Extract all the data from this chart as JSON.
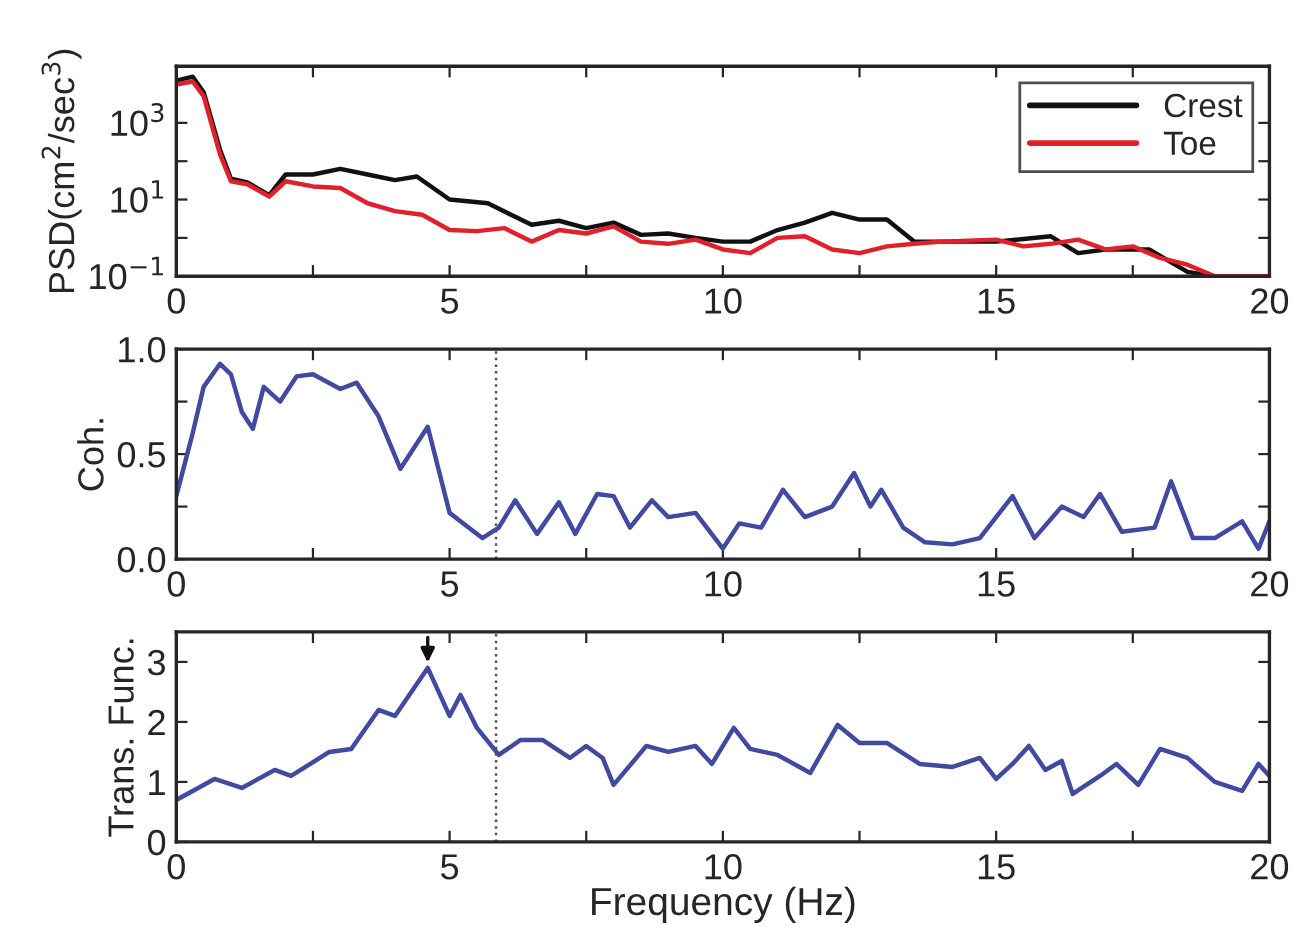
{
  "chart_data": [
    {
      "type": "line",
      "ylabel": "PSD(cm$^{2}$/sec$^{3}$)",
      "log": "y",
      "legend": "top right",
      "grid": false,
      "xlim": [
        0,
        20
      ],
      "ylim": [
        0.1,
        30000
      ],
      "xticks": [
        0,
        {
          "value": 2.5,
          "label": null
        },
        5,
        {
          "value": 7.5,
          "label": null
        },
        10,
        {
          "value": 12.5,
          "label": null
        },
        15,
        {
          "value": 17.5,
          "label": null
        },
        20
      ],
      "yticks": [
        {
          "value": 0.1,
          "label": "10$^{−1}$"
        },
        {
          "value": 1,
          "label": null
        },
        {
          "value": 10,
          "label": "10$^{1}$"
        },
        {
          "value": 100,
          "label": null
        },
        {
          "value": 1000,
          "label": "10$^{3}$"
        }
      ],
      "series": [
        {
          "name": "Crest",
          "color": "#111111",
          "x": [
            0,
            0.3,
            0.5,
            0.8,
            1.0,
            1.3,
            1.7,
            2.0,
            2.5,
            3.0,
            3.5,
            4.0,
            4.4,
            5.0,
            5.7,
            6.5,
            7.0,
            7.5,
            8.0,
            8.5,
            9,
            9.5,
            10,
            10.5,
            11,
            11.5,
            12,
            12.5,
            13,
            13.5,
            14,
            15,
            16,
            16.5,
            17,
            17.8,
            18.5,
            19,
            20
          ],
          "values": [
            12600,
            16000,
            6300,
            200,
            35,
            28,
            13,
            45,
            45,
            63,
            45,
            32,
            40,
            10,
            8,
            2.2,
            2.8,
            1.8,
            2.5,
            1.2,
            1.3,
            1.0,
            0.8,
            0.8,
            1.6,
            2.5,
            4.5,
            3,
            3,
            0.8,
            0.8,
            0.8,
            1.1,
            0.4,
            0.5,
            0.5,
            0.13,
            0.1,
            0.1
          ]
        },
        {
          "name": "Toe",
          "color": "#e0202a",
          "x": [
            0,
            0.3,
            0.5,
            0.8,
            1.0,
            1.3,
            1.7,
            2.0,
            2.5,
            3.0,
            3.5,
            4,
            4.5,
            5,
            5.5,
            6,
            6.5,
            7,
            7.5,
            8,
            8.5,
            9,
            9.5,
            10,
            10.5,
            11,
            11.5,
            12,
            12.5,
            13,
            13.5,
            14,
            15,
            15.5,
            16,
            16.5,
            17,
            17.5,
            18,
            18.5,
            19,
            20
          ],
          "values": [
            10000,
            12000,
            5000,
            150,
            30,
            25,
            12,
            30,
            22,
            20,
            8,
            5,
            4,
            1.6,
            1.5,
            1.8,
            0.8,
            1.6,
            1.3,
            2,
            0.8,
            0.7,
            0.9,
            0.5,
            0.4,
            1.0,
            1.1,
            0.5,
            0.4,
            0.6,
            0.7,
            0.8,
            0.9,
            0.6,
            0.7,
            0.9,
            0.5,
            0.6,
            0.3,
            0.2,
            0.1,
            0.1
          ]
        }
      ]
    },
    {
      "type": "line",
      "ylabel": "Coh.",
      "grid": false,
      "xlim": [
        0,
        20
      ],
      "ylim": [
        0,
        1
      ],
      "xticks": [
        0,
        {
          "value": 2.5,
          "label": null
        },
        5,
        {
          "value": 7.5,
          "label": null
        },
        10,
        {
          "value": 12.5,
          "label": null
        },
        15,
        {
          "value": 17.5,
          "label": null
        },
        20
      ],
      "yticks": [
        {
          "value": 0,
          "label": "0.0"
        },
        {
          "value": 0.25,
          "label": null
        },
        {
          "value": 0.5,
          "label": "0.5"
        },
        {
          "value": 0.75,
          "label": null
        },
        {
          "value": 1,
          "label": "1.0"
        }
      ],
      "ref_lines": [
        {
          "axis": "x",
          "value": 5.85,
          "color": "#555555",
          "line_style": "dotted"
        }
      ],
      "series": [
        {
          "color": "#3f4aa0",
          "x": [
            0,
            0.3,
            0.5,
            0.8,
            1.0,
            1.2,
            1.4,
            1.6,
            1.9,
            2.2,
            2.5,
            3.0,
            3.3,
            3.7,
            4.1,
            4.4,
            4.6,
            5.0,
            5.4,
            5.6,
            5.9,
            6.2,
            6.6,
            7.0,
            7.3,
            7.7,
            8.0,
            8.3,
            8.7,
            9.0,
            9.5,
            10.0,
            10.3,
            10.7,
            11.1,
            11.5,
            12.0,
            12.4,
            12.7,
            12.9,
            13.3,
            13.7,
            14.2,
            14.7,
            15.3,
            15.7,
            16.2,
            16.6,
            16.9,
            17.3,
            17.9,
            18.2,
            18.6,
            19.0,
            19.5,
            19.8,
            20
          ],
          "values": [
            0.3,
            0.6,
            0.82,
            0.93,
            0.88,
            0.7,
            0.62,
            0.82,
            0.75,
            0.87,
            0.88,
            0.81,
            0.84,
            0.68,
            0.43,
            0.55,
            0.63,
            0.22,
            0.14,
            0.1,
            0.15,
            0.28,
            0.12,
            0.27,
            0.12,
            0.31,
            0.3,
            0.15,
            0.28,
            0.2,
            0.22,
            0.05,
            0.17,
            0.15,
            0.33,
            0.2,
            0.25,
            0.41,
            0.25,
            0.33,
            0.15,
            0.08,
            0.07,
            0.1,
            0.3,
            0.1,
            0.25,
            0.2,
            0.31,
            0.13,
            0.15,
            0.37,
            0.1,
            0.1,
            0.18,
            0.05,
            0.18
          ]
        }
      ]
    },
    {
      "type": "line",
      "ylabel": "Trans. Func.",
      "xlabel": "Frequency (Hz)",
      "grid": false,
      "xlim": [
        0,
        20
      ],
      "ylim": [
        0,
        3.5
      ],
      "xticks": [
        0,
        {
          "value": 2.5,
          "label": null
        },
        5,
        {
          "value": 7.5,
          "label": null
        },
        10,
        {
          "value": 12.5,
          "label": null
        },
        15,
        {
          "value": 17.5,
          "label": null
        },
        20
      ],
      "yticks": [
        0,
        1,
        2,
        3
      ],
      "ref_lines": [
        {
          "axis": "x",
          "value": 5.85,
          "color": "#555555",
          "line_style": "dotted"
        }
      ],
      "series": [
        {
          "color": "#3f4aa0",
          "x": [
            0,
            0.7,
            1.2,
            1.8,
            2.1,
            2.8,
            3.2,
            3.7,
            4.0,
            4.6,
            5.0,
            5.2,
            5.5,
            5.9,
            6.3,
            6.7,
            7.2,
            7.5,
            7.8,
            8.0,
            8.6,
            9.0,
            9.5,
            9.8,
            10.2,
            10.5,
            11,
            11.6,
            12.1,
            12.5,
            13,
            13.6,
            14.2,
            14.7,
            15,
            15.3,
            15.6,
            15.9,
            16.2,
            16.4,
            16.9,
            17.2,
            17.6,
            18.0,
            18.5,
            19.0,
            19.5,
            19.8,
            20
          ],
          "values": [
            0.7,
            1.05,
            0.9,
            1.2,
            1.1,
            1.5,
            1.55,
            2.2,
            2.1,
            2.9,
            2.1,
            2.45,
            1.9,
            1.45,
            1.7,
            1.7,
            1.4,
            1.6,
            1.4,
            0.95,
            1.6,
            1.5,
            1.6,
            1.3,
            1.9,
            1.55,
            1.45,
            1.15,
            1.95,
            1.65,
            1.65,
            1.3,
            1.25,
            1.4,
            1.05,
            1.3,
            1.6,
            1.2,
            1.35,
            0.8,
            1.1,
            1.3,
            0.95,
            1.55,
            1.4,
            1.0,
            0.85,
            1.3,
            1.1
          ]
        }
      ]
    }
  ]
}
